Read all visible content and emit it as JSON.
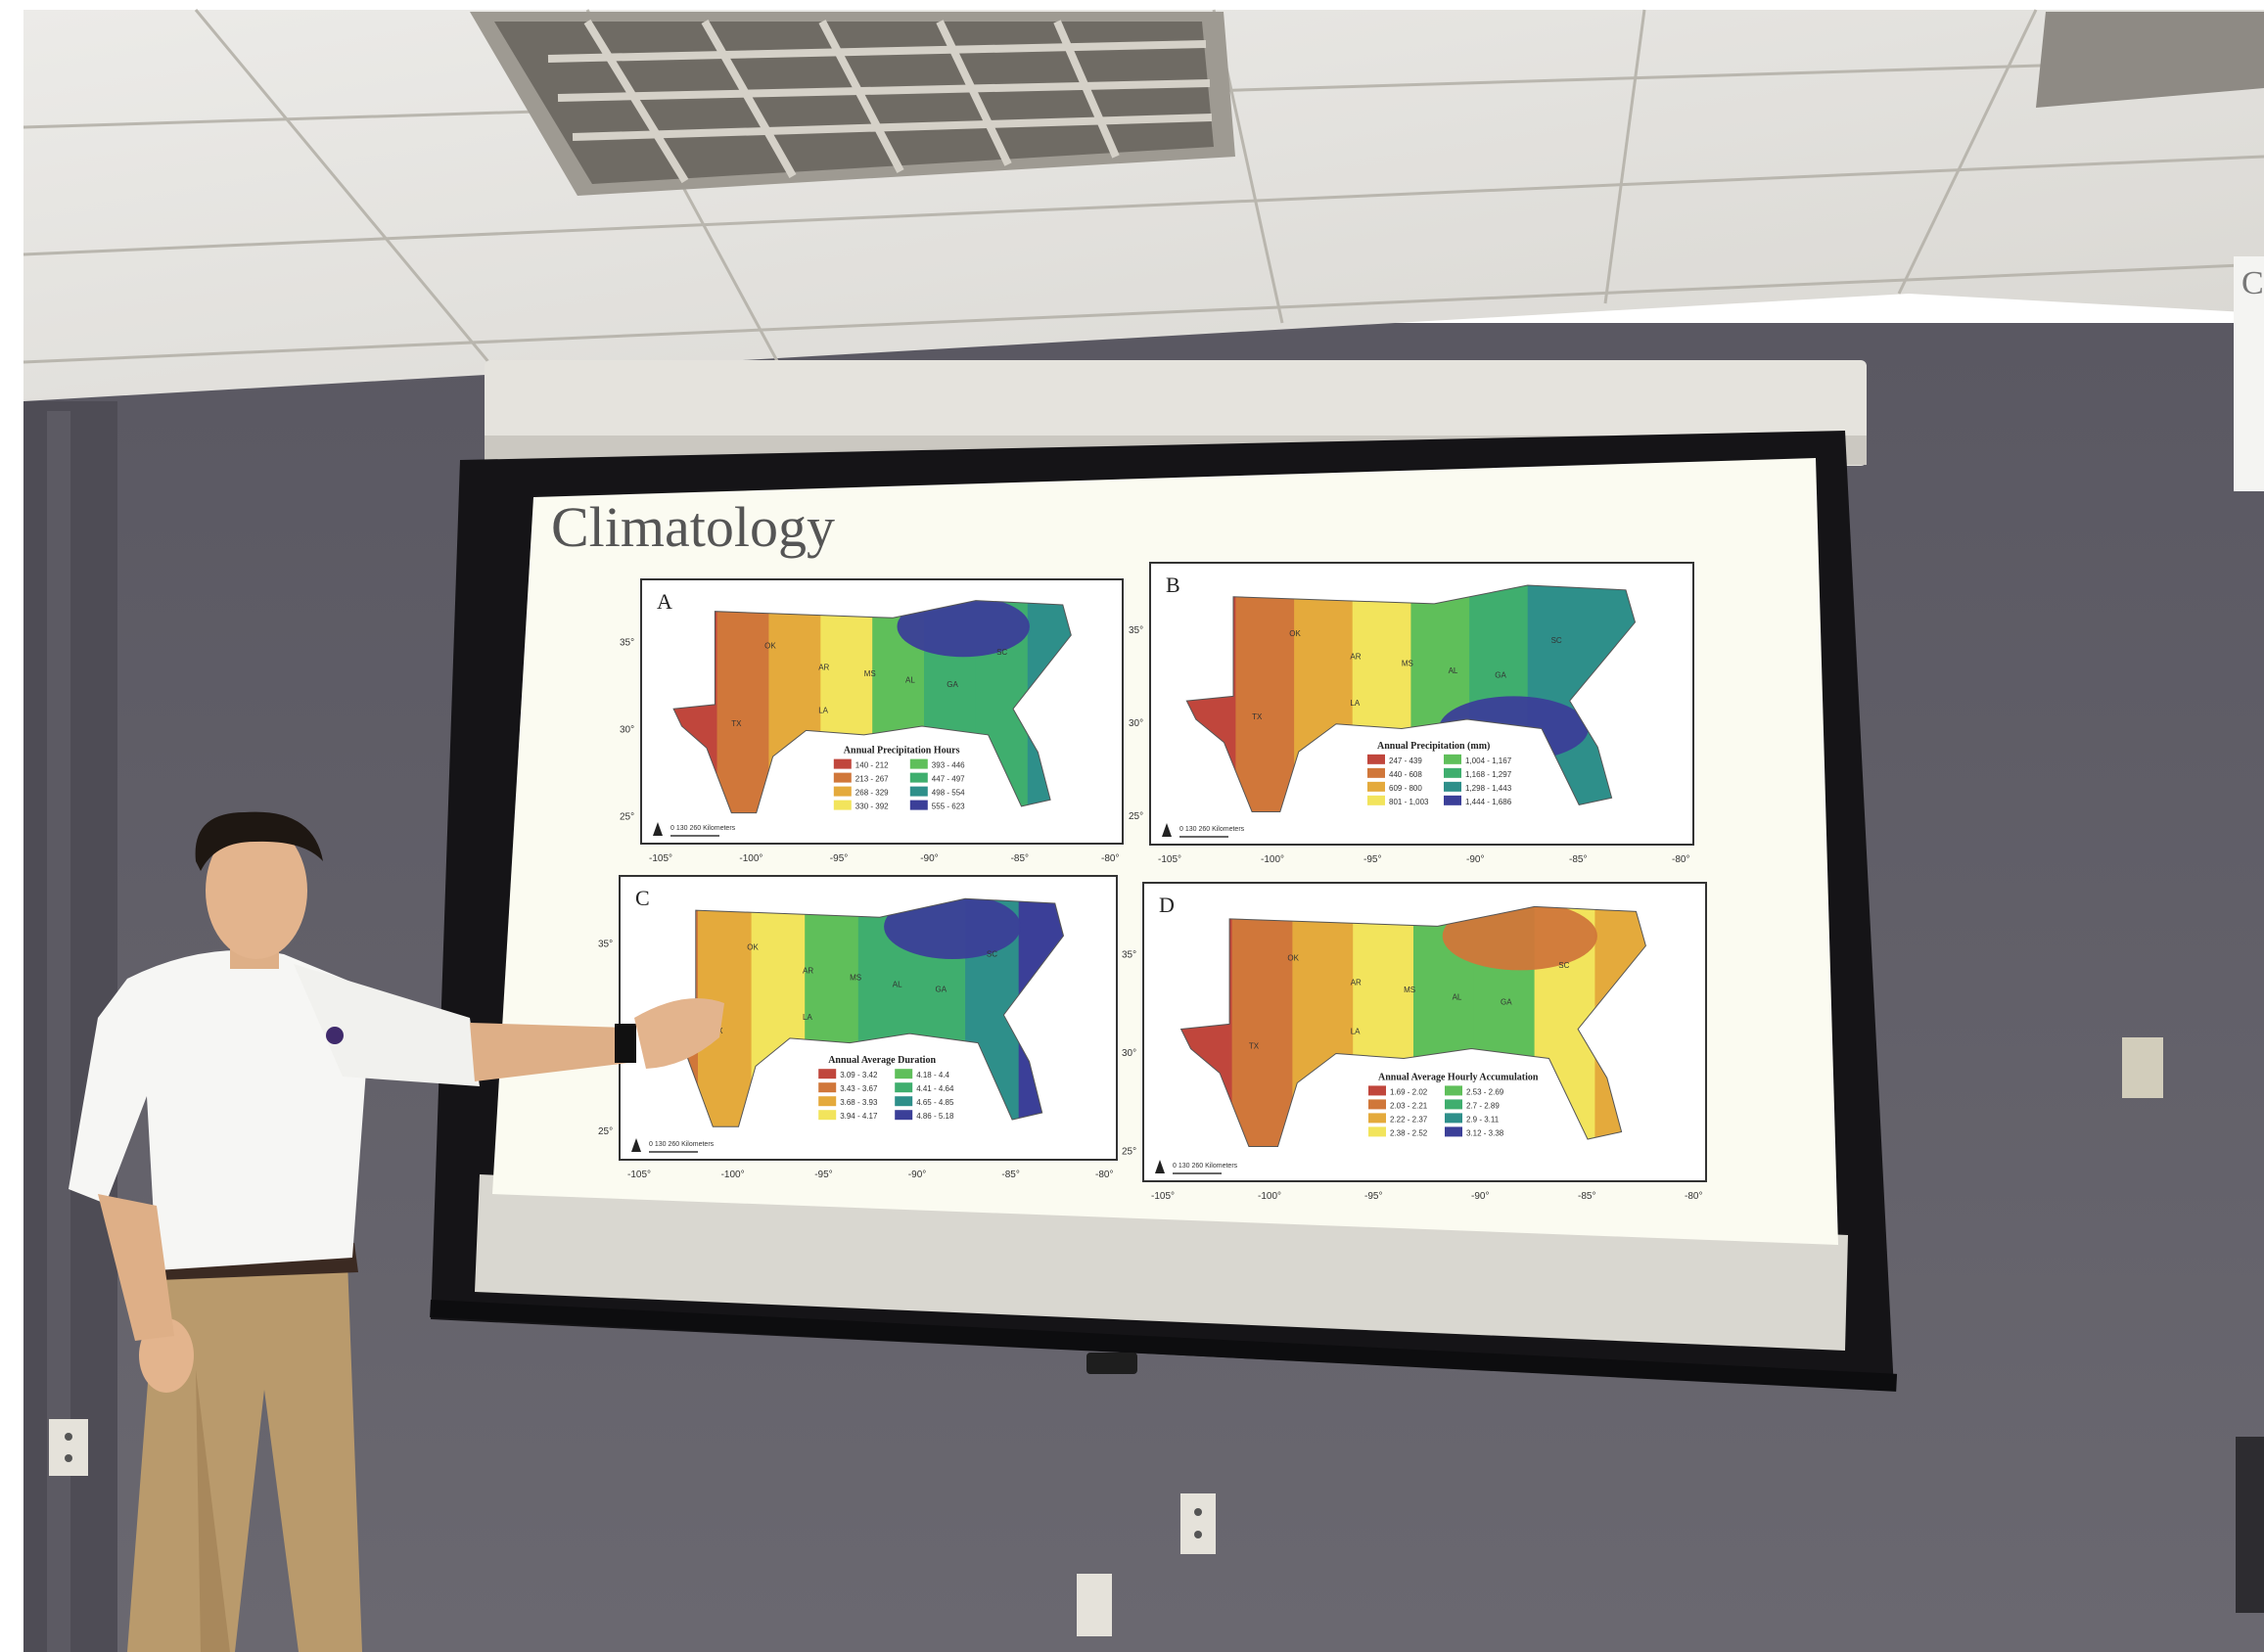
{
  "slide": {
    "title": "Climatology",
    "panels": [
      {
        "letter": "A",
        "legend_title": "Annual Precipitation Hours",
        "legend_items": [
          "140 - 212",
          "213 - 267",
          "268 - 329",
          "330 - 392",
          "393 - 446",
          "447 - 497",
          "498 - 554",
          "555 - 623"
        ],
        "lat_labels": [
          "35°",
          "30°",
          "25°"
        ],
        "lon_labels": [
          "-105°",
          "-100°",
          "-95°",
          "-90°",
          "-85°",
          "-80°"
        ],
        "scale_text": "0   130   260 Kilometers",
        "state_labels": [
          "OK",
          "TX",
          "AR",
          "LA",
          "MS",
          "AL",
          "GA",
          "SC"
        ]
      },
      {
        "letter": "B",
        "legend_title": "Annual Precipitation (mm)",
        "legend_items": [
          "247 - 439",
          "440 - 608",
          "609 - 800",
          "801 - 1,003",
          "1,004 - 1,167",
          "1,168 - 1,297",
          "1,298 - 1,443",
          "1,444 - 1,686"
        ],
        "lat_labels": [
          "35°",
          "30°",
          "25°"
        ],
        "lon_labels": [
          "-105°",
          "-100°",
          "-95°",
          "-90°",
          "-85°",
          "-80°"
        ],
        "scale_text": "0   130   260 Kilometers",
        "state_labels": [
          "OK",
          "TX",
          "AR",
          "LA",
          "MS",
          "AL",
          "GA",
          "SC"
        ]
      },
      {
        "letter": "C",
        "legend_title": "Annual Average Duration",
        "legend_items": [
          "3.09 - 3.42",
          "3.43 - 3.67",
          "3.68 - 3.93",
          "3.94 - 4.17",
          "4.18 - 4.4",
          "4.41 - 4.64",
          "4.65 - 4.85",
          "4.86 - 5.18"
        ],
        "lat_labels": [
          "35°",
          "30°",
          "25°"
        ],
        "lon_labels": [
          "-105°",
          "-100°",
          "-95°",
          "-90°",
          "-85°",
          "-80°"
        ],
        "scale_text": "0   130   260 Kilometers",
        "state_labels": [
          "OK",
          "TX",
          "AR",
          "LA",
          "MS",
          "AL",
          "GA",
          "SC"
        ]
      },
      {
        "letter": "D",
        "legend_title": "Annual Average Hourly Accumulation",
        "legend_items": [
          "1.69 - 2.02",
          "2.03 - 2.21",
          "2.22 - 2.37",
          "2.38 - 2.52",
          "2.53 - 2.69",
          "2.7 - 2.89",
          "2.9 - 3.11",
          "3.12 - 3.38"
        ],
        "lat_labels": [
          "35°",
          "30°",
          "25°"
        ],
        "lon_labels": [
          "-105°",
          "-100°",
          "-95°",
          "-90°",
          "-85°",
          "-80°"
        ],
        "scale_text": "0   130   260 Kilometers",
        "state_labels": [
          "OK",
          "TX",
          "AR",
          "LA",
          "MS",
          "AL",
          "GA",
          "SC"
        ]
      }
    ]
  },
  "colors": {
    "scale": [
      "#c0463c",
      "#d0773a",
      "#e4aa3c",
      "#f2e45c",
      "#5fbf5a",
      "#3fae6e",
      "#2e8f8a",
      "#3b3f98"
    ],
    "ceiling": "#e9e7e2",
    "wall": "#5f5d66",
    "screen": "#fbfbf1"
  },
  "edge_label": "C"
}
